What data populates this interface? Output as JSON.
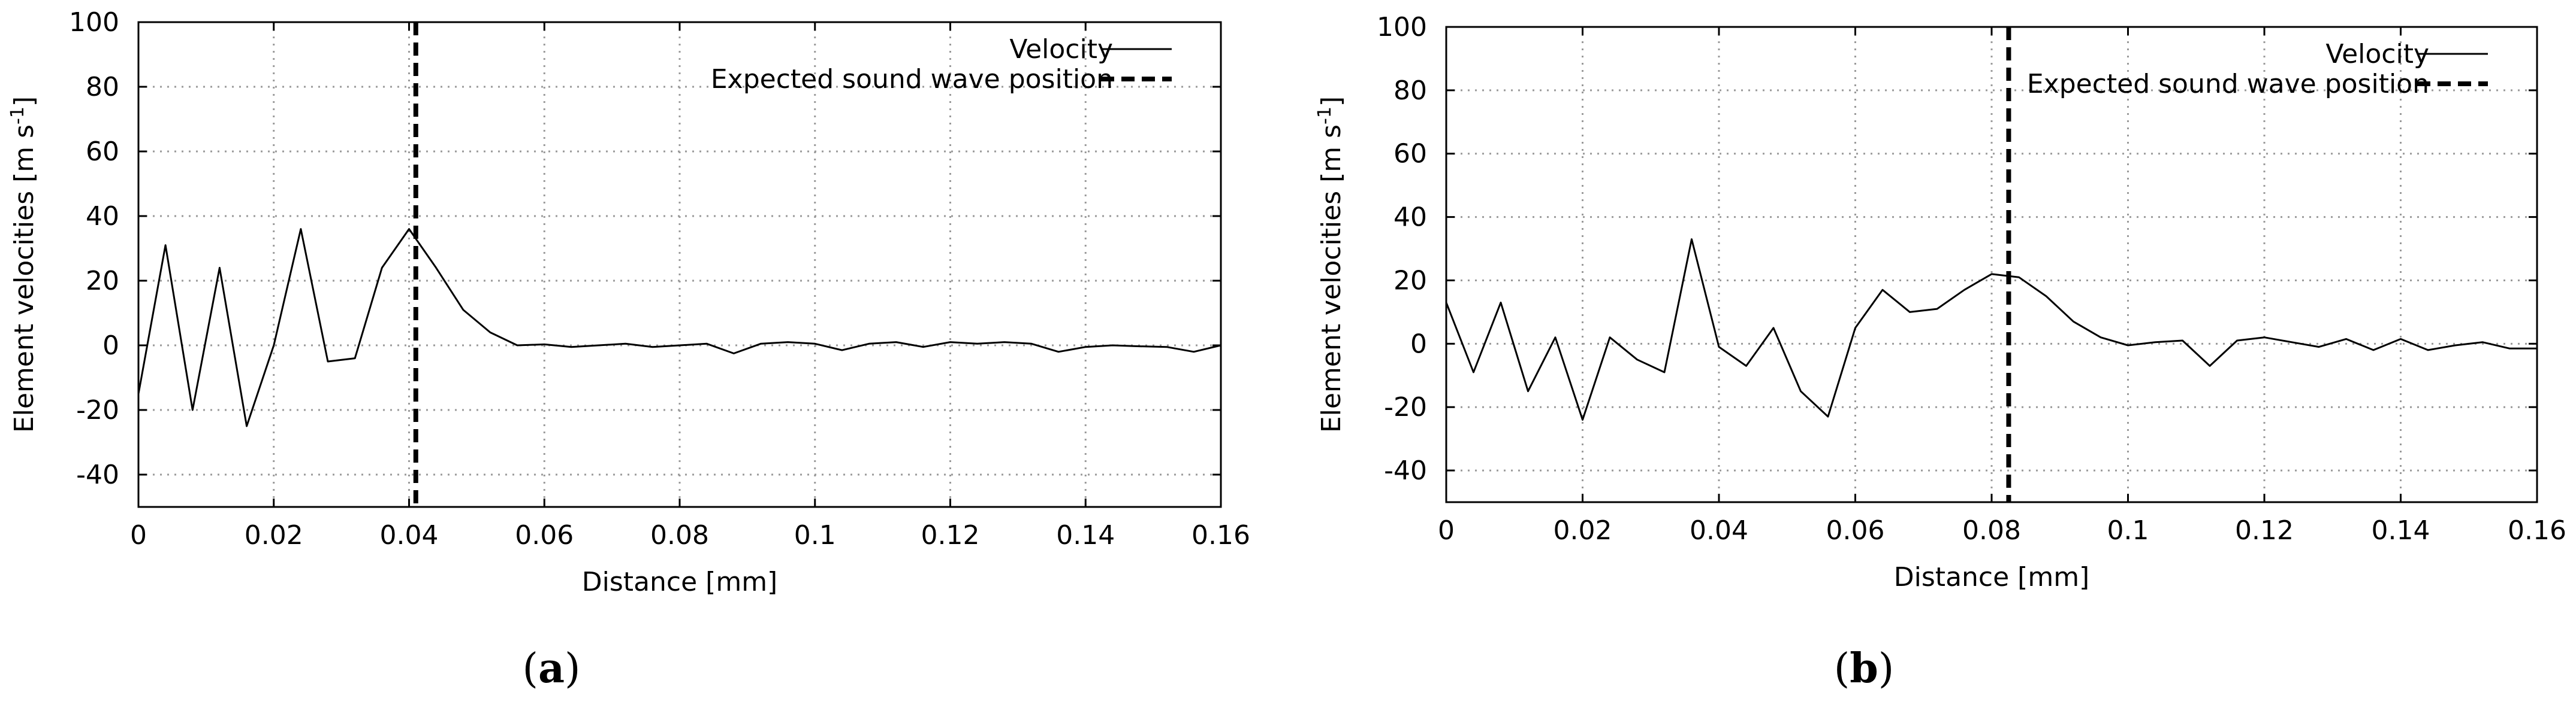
{
  "chart_data": [
    {
      "type": "line",
      "panel_label": "a",
      "xlabel": "Distance [mm]",
      "ylabel_prefix": "Element velocities [m s",
      "ylabel_sup": "-1",
      "ylabel_suffix": "]",
      "xlim": [
        0,
        0.16
      ],
      "ylim": [
        -50,
        100
      ],
      "xticks": [
        "0",
        "0.02",
        "0.04",
        "0.06",
        "0.08",
        "0.1",
        "0.12",
        "0.14",
        "0.16"
      ],
      "xtick_values": [
        0,
        0.02,
        0.04,
        0.06,
        0.08,
        0.1,
        0.12,
        0.14,
        0.16
      ],
      "yticks": [
        "100",
        "80",
        "60",
        "40",
        "20",
        "0",
        "-20",
        "-40"
      ],
      "ytick_values": [
        100,
        80,
        60,
        40,
        20,
        0,
        -20,
        -40
      ],
      "grid": true,
      "legend_position": "top-right",
      "series": [
        {
          "name": "Velocity",
          "style": "solid",
          "x": [
            0,
            0.004,
            0.008,
            0.012,
            0.016,
            0.02,
            0.024,
            0.028,
            0.032,
            0.036,
            0.04,
            0.044,
            0.048,
            0.052,
            0.056,
            0.06,
            0.064,
            0.068,
            0.072,
            0.076,
            0.08,
            0.084,
            0.088,
            0.092,
            0.096,
            0.1,
            0.104,
            0.108,
            0.112,
            0.116,
            0.12,
            0.124,
            0.128,
            0.132,
            0.136,
            0.14,
            0.144,
            0.148,
            0.152,
            0.156,
            0.16
          ],
          "y": [
            -15,
            31,
            -20,
            24,
            -25,
            0,
            36,
            -5,
            -4,
            24,
            36,
            24,
            11,
            4,
            0,
            0.3,
            -0.5,
            0,
            0.5,
            -0.5,
            0,
            0.5,
            -2.5,
            0.5,
            1,
            0.5,
            -1.5,
            0.5,
            1,
            -0.5,
            1,
            0.5,
            1,
            0.5,
            -2,
            -0.5,
            0,
            -0.3,
            -0.5,
            -2,
            0
          ]
        },
        {
          "name": "Expected sound wave position",
          "style": "dashed",
          "vertical_line_x": 0.041
        }
      ]
    },
    {
      "type": "line",
      "panel_label": "b",
      "xlabel": "Distance [mm]",
      "ylabel_prefix": "Element velocities [m s",
      "ylabel_sup": "-1",
      "ylabel_suffix": "]",
      "xlim": [
        0,
        0.16
      ],
      "ylim": [
        -50,
        100
      ],
      "xticks": [
        "0",
        "0.02",
        "0.04",
        "0.06",
        "0.08",
        "0.1",
        "0.12",
        "0.14",
        "0.16"
      ],
      "xtick_values": [
        0,
        0.02,
        0.04,
        0.06,
        0.08,
        0.1,
        0.12,
        0.14,
        0.16
      ],
      "yticks": [
        "100",
        "80",
        "60",
        "40",
        "20",
        "0",
        "-20",
        "-40"
      ],
      "ytick_values": [
        100,
        80,
        60,
        40,
        20,
        0,
        -20,
        -40
      ],
      "grid": true,
      "legend_position": "top-right",
      "series": [
        {
          "name": "Velocity",
          "style": "solid",
          "x": [
            0,
            0.004,
            0.008,
            0.012,
            0.016,
            0.02,
            0.024,
            0.028,
            0.032,
            0.036,
            0.04,
            0.044,
            0.048,
            0.052,
            0.056,
            0.06,
            0.064,
            0.068,
            0.072,
            0.076,
            0.08,
            0.084,
            0.088,
            0.092,
            0.096,
            0.1,
            0.104,
            0.108,
            0.112,
            0.116,
            0.12,
            0.124,
            0.128,
            0.132,
            0.136,
            0.14,
            0.144,
            0.148,
            0.152,
            0.156,
            0.16
          ],
          "y": [
            13,
            -9,
            13,
            -15,
            2,
            -24,
            2,
            -5,
            -9,
            33,
            -1,
            -7,
            5,
            -15,
            -23,
            5,
            17,
            10,
            11,
            17,
            22,
            21,
            15,
            7,
            2,
            -0.5,
            0.5,
            1,
            -7,
            1,
            2,
            0.5,
            -1,
            1.5,
            -2,
            1.5,
            -2,
            -0.5,
            0.5,
            -1.5,
            -1.5
          ]
        },
        {
          "name": "Expected sound wave position",
          "style": "dashed",
          "vertical_line_x": 0.0825
        }
      ]
    }
  ]
}
